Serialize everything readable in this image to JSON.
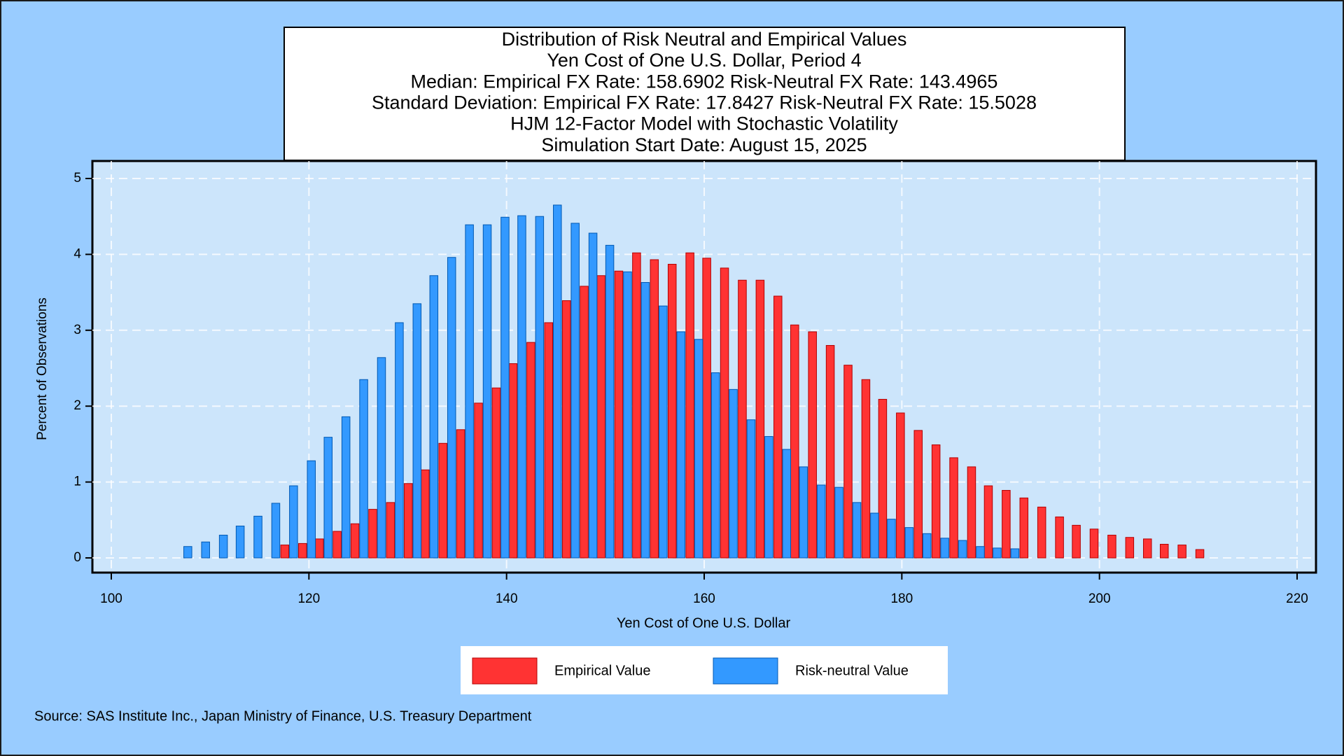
{
  "chart_data": {
    "type": "bar",
    "title": "Distribution of Risk Neutral and Empirical Values",
    "subtitles": [
      "Yen Cost of One U.S. Dollar, Period 4",
      "Median: Empirical FX Rate: 158.6902   Risk-Neutral FX Rate: 143.4965",
      "Standard Deviation: Empirical FX Rate: 17.8427   Risk-Neutral FX Rate: 15.5028",
      "HJM 12-Factor Model with Stochastic Volatility",
      "Simulation Start Date: August 15, 2025"
    ],
    "x_label": "Yen Cost of One U.S. Dollar",
    "y_label": "Percent of Observations",
    "source": "Source: SAS Institute Inc., Japan Ministry of Finance, U.S. Treasury Department",
    "x": [
      107.3,
      109.1,
      110.9,
      112.6,
      114.4,
      116.2,
      118.0,
      119.8,
      121.5,
      123.3,
      125.1,
      126.9,
      128.7,
      130.5,
      132.2,
      134.0,
      135.8,
      137.6,
      139.4,
      141.1,
      142.9,
      144.7,
      146.5,
      148.3,
      150.0,
      151.8,
      153.6,
      155.4,
      157.2,
      159.0,
      160.7,
      162.5,
      164.3,
      166.1,
      167.9,
      169.6,
      171.4,
      173.2,
      175.0,
      176.8,
      178.5,
      180.3,
      182.1,
      183.9,
      185.7,
      187.5,
      189.2,
      191.0,
      192.8,
      194.6,
      196.4,
      198.1,
      199.9,
      201.7,
      203.5,
      205.3,
      207.0,
      208.8,
      210.6
    ],
    "series": [
      {
        "name": "Empirical Value",
        "color": "#ff3333",
        "values": [
          null,
          null,
          null,
          null,
          null,
          null,
          0.17,
          0.19,
          0.25,
          0.35,
          0.45,
          0.64,
          0.73,
          0.98,
          1.16,
          1.51,
          1.69,
          2.04,
          2.24,
          2.56,
          2.84,
          3.1,
          3.39,
          3.58,
          3.72,
          3.78,
          4.02,
          3.93,
          3.87,
          4.02,
          3.95,
          3.82,
          3.66,
          3.66,
          3.45,
          3.07,
          2.98,
          2.8,
          2.54,
          2.35,
          2.09,
          1.91,
          1.68,
          1.49,
          1.32,
          1.2,
          0.95,
          0.89,
          0.79,
          0.67,
          0.54,
          0.43,
          0.38,
          0.3,
          0.27,
          0.25,
          0.18,
          0.17,
          0.11
        ]
      },
      {
        "name": "Risk-neutral Value",
        "color": "#3399ff",
        "values": [
          0.15,
          0.21,
          0.3,
          0.42,
          0.55,
          0.72,
          0.95,
          1.28,
          1.59,
          1.86,
          2.35,
          2.64,
          3.1,
          3.35,
          3.72,
          3.96,
          4.39,
          4.39,
          4.49,
          4.51,
          4.5,
          4.65,
          4.41,
          4.28,
          4.12,
          3.77,
          3.63,
          3.32,
          2.98,
          2.88,
          2.44,
          2.22,
          1.82,
          1.6,
          1.43,
          1.2,
          0.96,
          0.93,
          0.73,
          0.59,
          0.51,
          0.4,
          0.32,
          0.26,
          0.23,
          0.15,
          0.13,
          0.12,
          null,
          null,
          null,
          null,
          null,
          null,
          null,
          null,
          null,
          null,
          null
        ]
      }
    ],
    "xlim": [
      100,
      220
    ],
    "xticks": [
      100,
      120,
      140,
      160,
      180,
      200,
      220
    ],
    "ylim": [
      0,
      5
    ],
    "yticks": [
      0,
      1,
      2,
      3,
      4,
      5
    ],
    "grid": true
  }
}
